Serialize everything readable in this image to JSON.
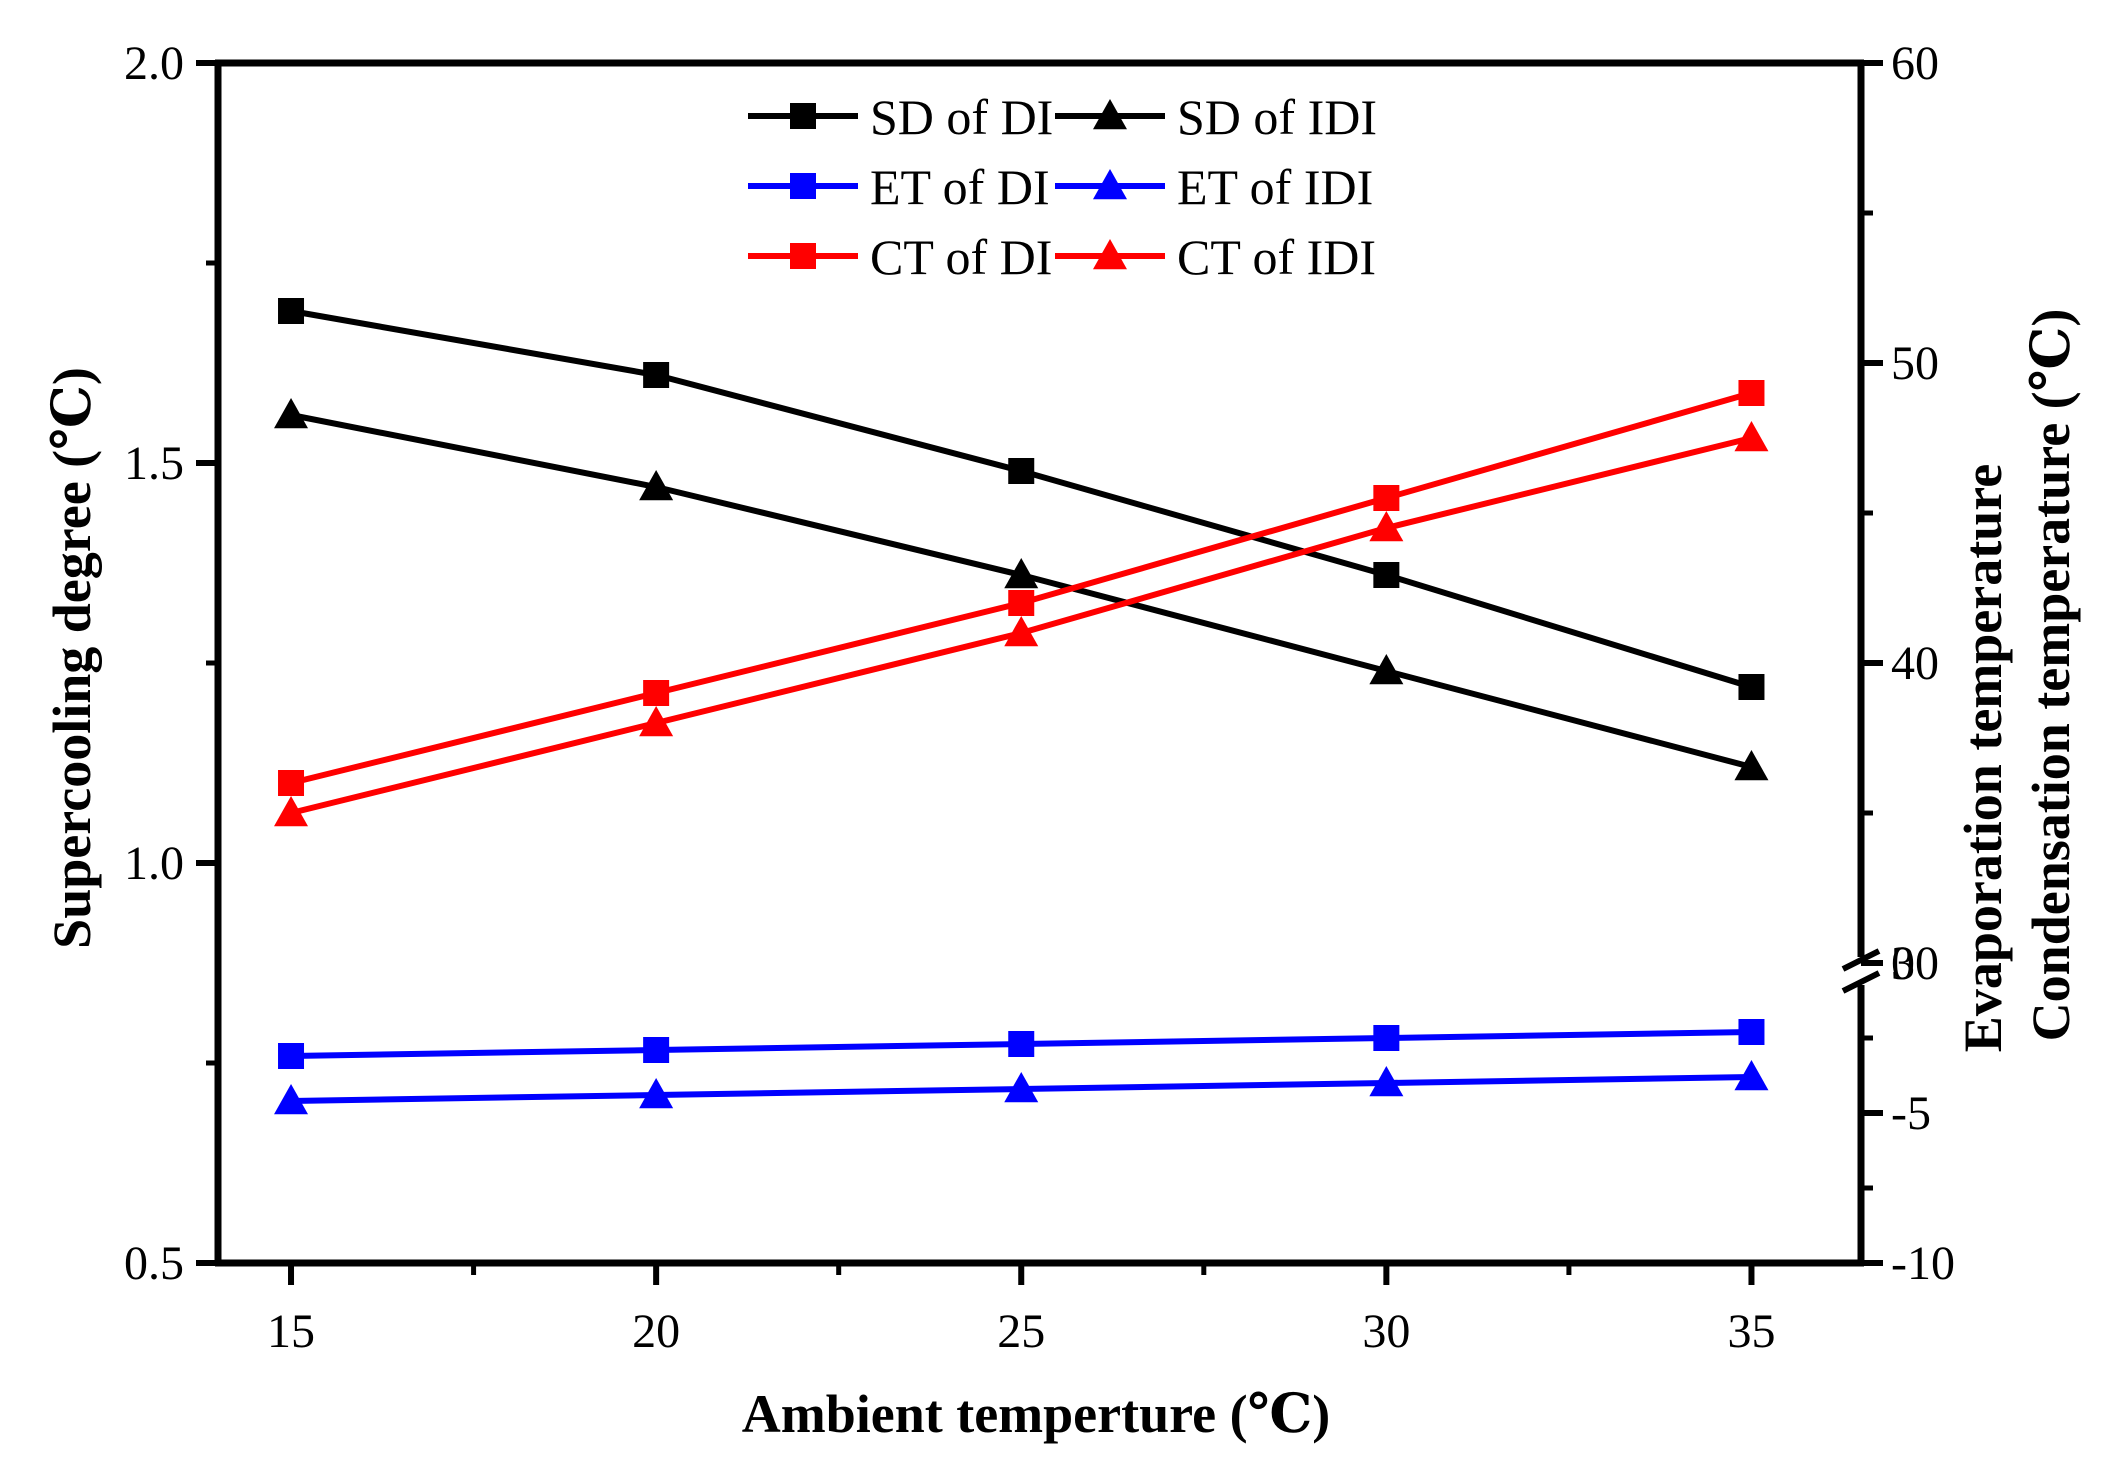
{
  "chart_data": {
    "type": "line",
    "xlabel": "Ambient temperture (℃)",
    "ylabel_left": "Supercooling degree  (℃)",
    "ylabel_right": [
      "Evaporation temperature",
      "Condensation temperature (℃)"
    ],
    "x": [
      15,
      20,
      25,
      30,
      35
    ],
    "x_ticks": [
      15,
      20,
      25,
      30,
      35
    ],
    "x_tick_labels": [
      "15",
      "20",
      "25",
      "30",
      "35"
    ],
    "xlim": [
      14,
      36.5
    ],
    "ylim_left": [
      0.5,
      2.0
    ],
    "y_left_ticks": [
      0.5,
      1.0,
      1.5,
      2.0
    ],
    "y_left_tick_labels": [
      "0.5",
      "1.0",
      "1.5",
      "2.0"
    ],
    "y_right_ticks": [
      -10,
      -5,
      0,
      30,
      40,
      50,
      60
    ],
    "y_right_tick_labels": [
      "-10",
      "-5",
      "0",
      "30",
      "40",
      "50",
      "60"
    ],
    "right_axis_break": "between 0 and 30",
    "legend_position": "top-center",
    "colors": {
      "black": "#000000",
      "blue": "#0000ff",
      "red": "#ff0000"
    },
    "series": [
      {
        "name": "SD of DI",
        "axis": "left",
        "color": "#000000",
        "marker": "square",
        "values": [
          1.69,
          1.61,
          1.49,
          1.36,
          1.22
        ]
      },
      {
        "name": "SD of IDI",
        "axis": "left",
        "color": "#000000",
        "marker": "triangle",
        "values": [
          1.56,
          1.47,
          1.36,
          1.24,
          1.12
        ]
      },
      {
        "name": "ET of DI",
        "axis": "right",
        "color": "#0000ff",
        "marker": "square",
        "values": [
          -3.1,
          -2.9,
          -2.7,
          -2.5,
          -2.3
        ]
      },
      {
        "name": "ET of IDI",
        "axis": "right",
        "color": "#0000ff",
        "marker": "triangle",
        "values": [
          -4.6,
          -4.4,
          -4.2,
          -4.0,
          -3.8
        ]
      },
      {
        "name": "CT of DI",
        "axis": "right",
        "color": "#ff0000",
        "marker": "square",
        "values": [
          36.0,
          39.0,
          42.0,
          45.5,
          49.0
        ]
      },
      {
        "name": "CT of IDI",
        "axis": "right",
        "color": "#ff0000",
        "marker": "triangle",
        "values": [
          35.0,
          38.0,
          41.0,
          44.5,
          47.5
        ]
      }
    ]
  }
}
